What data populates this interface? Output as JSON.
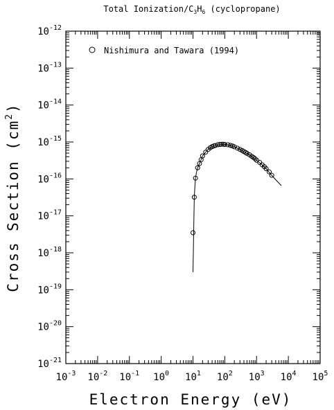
{
  "chart_data": {
    "type": "scatter",
    "title": "Total Ionization/C3H6 (cyclopropane)",
    "title_parts": {
      "before": "Total Ionization/C",
      "sub1": "3",
      "mid": "H",
      "sub2": "6",
      "after": " (cyclopropane)"
    },
    "xlabel": "Electron Energy (eV)",
    "ylabel": "Cross Section (cm2)",
    "ylabel_parts": {
      "base": "Cross Section (cm",
      "sup": "2",
      "close": ")"
    },
    "x_scale": "log",
    "y_scale": "log",
    "xlim": [
      0.001,
      100000
    ],
    "ylim": [
      1e-21,
      1e-12
    ],
    "x_ticks": [
      {
        "base": "10",
        "exp": "-3"
      },
      {
        "base": "10",
        "exp": "-2"
      },
      {
        "base": "10",
        "exp": "-1"
      },
      {
        "base": "10",
        "exp": "0"
      },
      {
        "base": "10",
        "exp": "1"
      },
      {
        "base": "10",
        "exp": "2"
      },
      {
        "base": "10",
        "exp": "3"
      },
      {
        "base": "10",
        "exp": "4"
      },
      {
        "base": "10",
        "exp": "5"
      }
    ],
    "y_ticks": [
      {
        "base": "10",
        "exp": "-21"
      },
      {
        "base": "10",
        "exp": "-20"
      },
      {
        "base": "10",
        "exp": "-19"
      },
      {
        "base": "10",
        "exp": "-18"
      },
      {
        "base": "10",
        "exp": "-17"
      },
      {
        "base": "10",
        "exp": "-16"
      },
      {
        "base": "10",
        "exp": "-15"
      },
      {
        "base": "10",
        "exp": "-14"
      },
      {
        "base": "10",
        "exp": "-13"
      },
      {
        "base": "10",
        "exp": "-12"
      }
    ],
    "grid": false,
    "legend": {
      "position": "top-left",
      "entries": [
        "Nishimura and Tawara (1994)"
      ]
    },
    "series": [
      {
        "name": "Nishimura and Tawara (1994)",
        "marker": "open-circle",
        "x": [
          10,
          11,
          12,
          14,
          16,
          18,
          20,
          25,
          30,
          35,
          40,
          45,
          50,
          60,
          70,
          80,
          90,
          100,
          125,
          150,
          175,
          200,
          250,
          300,
          350,
          400,
          450,
          500,
          600,
          700,
          800,
          900,
          1000,
          1250,
          1500,
          1750,
          2000,
          2500,
          3000
        ],
        "y": [
          3.5e-18,
          3.2e-17,
          1.05e-16,
          2e-16,
          2.6e-16,
          3.3e-16,
          4.2e-16,
          5.3e-16,
          6.3e-16,
          7e-16,
          7.5e-16,
          7.8e-16,
          8e-16,
          8.4e-16,
          8.6e-16,
          8.7e-16,
          8.7e-16,
          8.6e-16,
          8.4e-16,
          8.1e-16,
          7.8e-16,
          7.4e-16,
          6.8e-16,
          6.3e-16,
          5.9e-16,
          5.5e-16,
          5.2e-16,
          4.9e-16,
          4.5e-16,
          4.1e-16,
          3.8e-16,
          3.5e-16,
          3.2e-16,
          2.8e-16,
          2.4e-16,
          2.15e-16,
          1.9e-16,
          1.55e-16,
          1.25e-16
        ]
      },
      {
        "name": "",
        "marker": "line",
        "x": [
          10,
          10.3,
          10.7,
          11,
          11.5,
          12,
          13,
          14,
          16,
          18,
          20,
          25,
          30,
          40,
          50,
          70,
          90,
          100,
          150,
          200,
          300,
          500,
          700,
          1000,
          1500,
          2000,
          3000,
          4000,
          5000,
          6000
        ],
        "y": [
          3e-19,
          1.2e-18,
          8e-18,
          3.2e-17,
          6.5e-17,
          1.05e-16,
          1.55e-16,
          2e-16,
          2.6e-16,
          3.3e-16,
          4.2e-16,
          5.3e-16,
          6.3e-16,
          7.5e-16,
          8e-16,
          8.6e-16,
          8.7e-16,
          8.6e-16,
          8.1e-16,
          7.4e-16,
          6.3e-16,
          4.9e-16,
          4.1e-16,
          3.2e-16,
          2.4e-16,
          1.9e-16,
          1.25e-16,
          9.5e-17,
          7.8e-17,
          6.6e-17
        ]
      }
    ]
  }
}
